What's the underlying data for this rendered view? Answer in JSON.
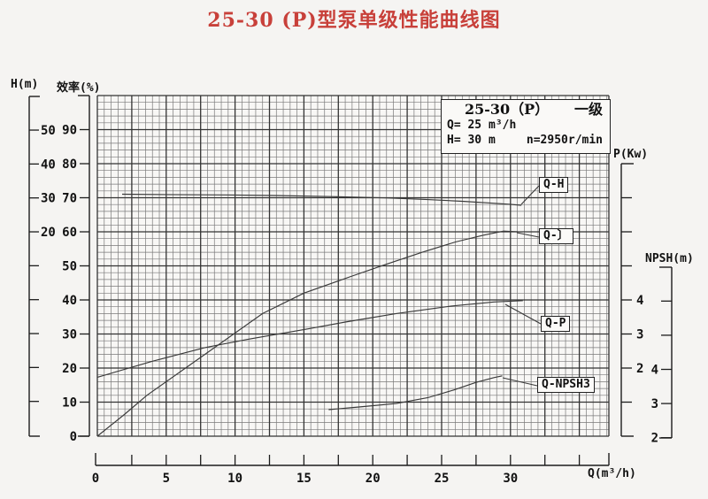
{
  "title": "25-30 (P)型泵单级性能曲线图",
  "info_box": {
    "model": "25-30（P）",
    "stage": "一级",
    "flow": "Q= 25 m³/h",
    "head": "H= 30 m",
    "speed": "n=2950r/min"
  },
  "curve_labels": {
    "qh": "Q-H",
    "qeta": "Q-〕",
    "qp": "Q-P",
    "qnpsh": "Q-NPSH3"
  },
  "chart_data": {
    "type": "line",
    "xlabel": "Q(m³/h)",
    "grid": "on",
    "axes": {
      "q": {
        "title": "Q(m³/h)",
        "min": 0,
        "max": 37.5,
        "tick_step": 2.5,
        "labeled_ticks": [
          0,
          5,
          10,
          15,
          20,
          25,
          30
        ]
      },
      "h": {
        "title": "H(m)",
        "labeled_ticks": [
          50,
          40,
          30,
          20
        ],
        "unlabeled_tick_count": 5
      },
      "efficiency": {
        "title": "效率(%)",
        "min": 0,
        "max": 100,
        "labeled_ticks": [
          90,
          80,
          70,
          60,
          50,
          40,
          30,
          20,
          10,
          0
        ]
      },
      "p": {
        "title": "P(Kw)",
        "labeled_ticks": [
          4,
          3,
          2
        ],
        "unlabeled_ticks_above": 3,
        "unlabeled_ticks_below": 1
      },
      "npsh": {
        "title": "NPSH(m)",
        "labeled_ticks": [
          4,
          3,
          2
        ],
        "unlabeled_ticks_above": 2
      }
    },
    "series": [
      {
        "name": "Q-H",
        "y_axis": "H(m)",
        "x": [
          1.8,
          5,
          9,
          13,
          17,
          21,
          24,
          26.5,
          28.5,
          30,
          30.8
        ],
        "y": [
          31.1,
          31.0,
          30.9,
          30.7,
          30.4,
          30.0,
          29.5,
          29.0,
          28.5,
          28.1,
          27.8
        ]
      },
      {
        "name": "Q-〕",
        "y_axis": "效率(%)",
        "x": [
          0,
          2,
          3.6,
          7.8,
          12,
          15,
          18.5,
          21,
          23.6,
          26,
          28,
          29.5,
          30.5
        ],
        "y": [
          0,
          6.5,
          12,
          24,
          36,
          42,
          47,
          50.5,
          54,
          57,
          59,
          60.2,
          60
        ]
      },
      {
        "name": "Q-P",
        "y_axis": "P(Kw)",
        "x": [
          0,
          4,
          7.8,
          11,
          15.3,
          18,
          21.7,
          25.7,
          28.8,
          30.9
        ],
        "y": [
          1.73,
          2.2,
          2.6,
          2.85,
          3.15,
          3.35,
          3.6,
          3.82,
          3.94,
          3.98
        ]
      },
      {
        "name": "Q-NPSH3",
        "y_axis": "NPSH(m)",
        "x": [
          16.8,
          19,
          21.7,
          24,
          25.9,
          27.5,
          28.8,
          29.4
        ],
        "y": [
          2.82,
          2.9,
          3.0,
          3.17,
          3.4,
          3.62,
          3.76,
          3.81
        ]
      }
    ]
  },
  "colors": {
    "title_red": "#c8403a",
    "curve": "#3a3a3a",
    "grid_minor": "#7a7a7a",
    "grid_major": "#333333",
    "axis": "#1c1c1c"
  }
}
